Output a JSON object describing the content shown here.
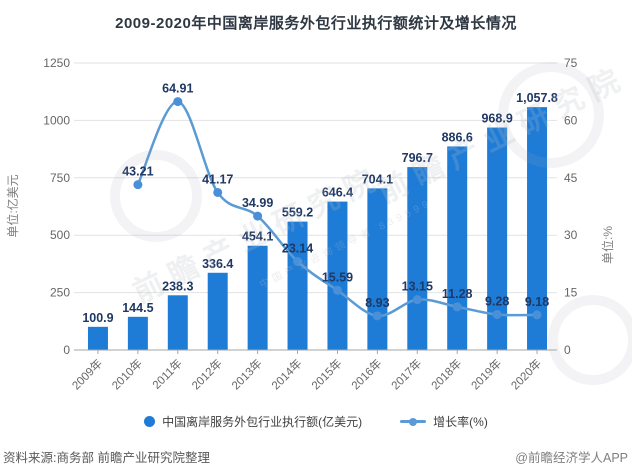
{
  "title": "2009-2020年中国离岸服务外包行业执行额统计及增长情况",
  "chart_data": {
    "type": "combo-bar-line",
    "categories": [
      "2009年",
      "2010年",
      "2011年",
      "2012年",
      "2013年",
      "2014年",
      "2015年",
      "2016年",
      "2017年",
      "2018年",
      "2019年",
      "2020年"
    ],
    "series": [
      {
        "name": "中国离岸服务外包行业执行额(亿美元)",
        "type": "bar",
        "axis": "left",
        "color": "#1e7cd7",
        "values": [
          100.9,
          144.5,
          238.3,
          336.4,
          454.1,
          559.2,
          646.4,
          704.1,
          796.7,
          886.6,
          968.9,
          1057.8
        ],
        "labels": [
          "100.9",
          "144.5",
          "238.3",
          "336.4",
          "454.1",
          "559.2",
          "646.4",
          "704.1",
          "796.7",
          "886.6",
          "968.9",
          "1,057.8"
        ]
      },
      {
        "name": "增长率(%)",
        "type": "line",
        "axis": "right",
        "color": "#5b9bd5",
        "point_color": "#4a90d9",
        "values": [
          null,
          43.21,
          64.91,
          41.17,
          34.99,
          23.14,
          15.59,
          8.93,
          13.15,
          11.28,
          9.28,
          9.18
        ],
        "labels": [
          "",
          "43.21",
          "64.91",
          "41.17",
          "34.99",
          "23.14",
          "15.59",
          "8.93",
          "13.15",
          "11.28",
          "9.28",
          "9.18"
        ]
      }
    ],
    "left_axis": {
      "label": "单位:亿美元",
      "min": 0,
      "max": 1250,
      "ticks": [
        0,
        250,
        500,
        750,
        1000,
        1250
      ]
    },
    "right_axis": {
      "label": "单位:%",
      "min": 0,
      "max": 75,
      "ticks": [
        0,
        15,
        30,
        45,
        60,
        75
      ]
    },
    "grid": true,
    "legend_position": "bottom",
    "label_color": "#1f3864",
    "axis_text_color": "#666666",
    "grid_color": "#e2e2e2",
    "axis_line_color": "#a6a6a6"
  },
  "legend": [
    {
      "label": "中国离岸服务外包行业执行额(亿美元)"
    },
    {
      "label": "增长率(%)"
    }
  ],
  "footer": {
    "source": "资料来源:商务部 前瞻产业研究院整理",
    "credit": "@前瞻经济学人APP"
  },
  "watermark": {
    "text": "前瞻产业研究院",
    "subtext": "中国产业咨询领导者 839599"
  }
}
